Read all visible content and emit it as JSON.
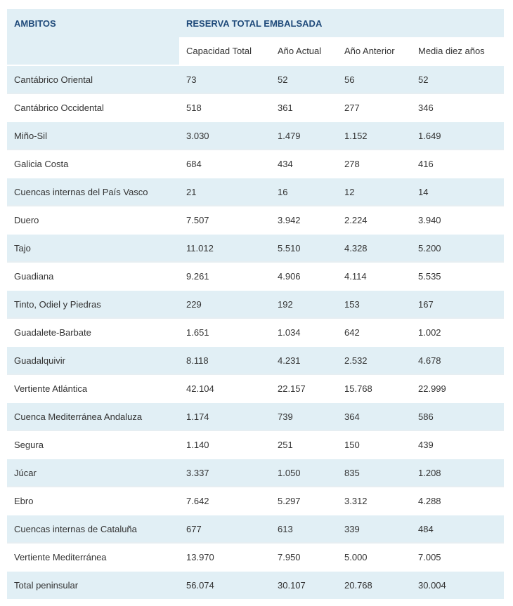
{
  "header": {
    "ambitos": "AMBITOS",
    "reserva": "RESERVA TOTAL EMBALSADA",
    "columns": [
      "Capacidad Total",
      "Año Actual",
      "Año Anterior",
      "Media diez años"
    ]
  },
  "rows": [
    [
      "Cantábrico Oriental",
      "73",
      "52",
      "56",
      "52"
    ],
    [
      "Cantábrico Occidental",
      "518",
      "361",
      "277",
      "346"
    ],
    [
      "Miño-Sil",
      "3.030",
      "1.479",
      "1.152",
      "1.649"
    ],
    [
      "Galicia Costa",
      "684",
      "434",
      "278",
      "416"
    ],
    [
      "Cuencas internas del País Vasco",
      "21",
      "16",
      "12",
      "14"
    ],
    [
      "Duero",
      "7.507",
      "3.942",
      "2.224",
      "3.940"
    ],
    [
      "Tajo",
      "11.012",
      "5.510",
      "4.328",
      "5.200"
    ],
    [
      "Guadiana",
      "9.261",
      "4.906",
      "4.114",
      "5.535"
    ],
    [
      "Tinto, Odiel y Piedras",
      "229",
      "192",
      "153",
      "167"
    ],
    [
      "Guadalete-Barbate",
      "1.651",
      "1.034",
      "642",
      "1.002"
    ],
    [
      "Guadalquivir",
      "8.118",
      "4.231",
      "2.532",
      "4.678"
    ],
    [
      "Vertiente Atlántica",
      "42.104",
      "22.157",
      "15.768",
      "22.999"
    ],
    [
      "Cuenca Mediterránea Andaluza",
      "1.174",
      "739",
      "364",
      "586"
    ],
    [
      "Segura",
      "1.140",
      "251",
      "150",
      "439"
    ],
    [
      "Júcar",
      "3.337",
      "1.050",
      "835",
      "1.208"
    ],
    [
      "Ebro",
      "7.642",
      "5.297",
      "3.312",
      "4.288"
    ],
    [
      "Cuencas internas de Cataluña",
      "677",
      "613",
      "339",
      "484"
    ],
    [
      "Vertiente Mediterránea",
      "13.970",
      "7.950",
      "5.000",
      "7.005"
    ],
    [
      "Total peninsular",
      "56.074",
      "30.107",
      "20.768",
      "30.004"
    ]
  ]
}
